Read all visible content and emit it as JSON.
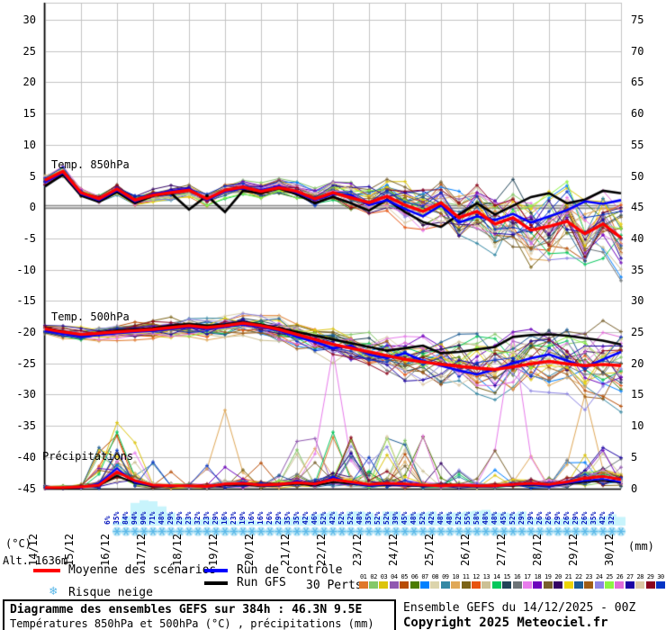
{
  "meta": {
    "altitude_label": "Alt. 1636m",
    "run_info": "Ensemble GEFS du 14/12/2025 - 00Z",
    "copyright": "Copyright 2025 Meteociel.fr",
    "title": "Diagramme des ensembles GEFS sur 384h : 46.3N 9.5E",
    "subtitle": "Températures 850hPa et 500hPa (°C) , précipitations (mm)"
  },
  "legend": {
    "mean": "Moyenne des scénarios",
    "control": "Run de contrôle",
    "gfs": "Run GFS",
    "perts": "30 Perts.",
    "snow": "Risque neige",
    "snowflake_icon": "❄"
  },
  "sections": {
    "t850": "Temp. 850hPa",
    "t500": "Temp. 500hPa",
    "precip": "Précipitations"
  },
  "axes": {
    "left_unit": "(°C)",
    "right_unit": "(mm)",
    "left_ticks": [
      30,
      25,
      20,
      15,
      10,
      5,
      0,
      -5,
      -10,
      -15,
      -20,
      -25,
      -30,
      -35,
      -40,
      -45
    ],
    "right_ticks": [
      75,
      70,
      65,
      60,
      55,
      50,
      45,
      40,
      35,
      30,
      25,
      20,
      15,
      10,
      5,
      0
    ],
    "dates": [
      "14/12",
      "15/12",
      "16/12",
      "17/12",
      "18/12",
      "19/12",
      "20/12",
      "21/12",
      "22/12",
      "23/12",
      "24/12",
      "25/12",
      "26/12",
      "27/12",
      "28/12",
      "29/12",
      "30/12"
    ]
  },
  "members": {
    "numbers": [
      "01",
      "02",
      "03",
      "04",
      "05",
      "06",
      "07",
      "08",
      "09",
      "10",
      "11",
      "12",
      "13",
      "14",
      "15",
      "16",
      "17",
      "18",
      "19",
      "20",
      "21",
      "22",
      "23",
      "24",
      "25",
      "26",
      "27",
      "28",
      "29",
      "30"
    ],
    "colors": [
      "#e07828",
      "#84c868",
      "#dcc40c",
      "#9058b0",
      "#b84c04",
      "#4c7c00",
      "#0080ff",
      "#dcd4ac",
      "#3488a4",
      "#e0a858",
      "#7c6418",
      "#e85410",
      "#ccc094",
      "#04c85c",
      "#204458",
      "#6c7478",
      "#e87cec",
      "#6c04bc",
      "#78602c",
      "#340464",
      "#ecd404",
      "#1c5c94",
      "#a05c14",
      "#8c84e4",
      "#8cf444",
      "#e06cd8",
      "#1c04a4",
      "#dcc8a4",
      "#8c041c",
      "#0434c4"
    ]
  },
  "colors": {
    "mean": "#ff0000",
    "control": "#0000ff",
    "gfs": "#000000",
    "grid": "#c4c4c4",
    "zero_line": "#8a8a8a",
    "axis": "#000000",
    "percent_text": "#0011bb",
    "snow_band": "#c8f4fc",
    "snowflake": "#5bb8e8",
    "snowflake_bg": "#bfe9f7"
  },
  "chart_data": {
    "type": "line",
    "title": "Diagramme des ensembles GEFS sur 384h : 46.3N 9.5E",
    "x_start": "14/12 00Z",
    "x_step_hours": 12,
    "x_days_total": 16,
    "ylim_temp_C": [
      -45,
      30
    ],
    "ylim_precip_mm": [
      0,
      75
    ],
    "grid": true,
    "series": {
      "mean_t850": [
        4.3,
        5.7,
        2.3,
        1.3,
        2.9,
        1.1,
        1.9,
        2.3,
        2.7,
        1.3,
        2.7,
        3.2,
        2.5,
        3.1,
        2.5,
        1.3,
        2.3,
        1.5,
        0.7,
        1.7,
        0.3,
        -0.7,
        0.7,
        -1.7,
        -0.7,
        -2.7,
        -1.7,
        -3.7,
        -3.1,
        -2.3,
        -4.3,
        -2.7,
        -4.9
      ],
      "control_t850": [
        4.0,
        5.5,
        2.1,
        1.1,
        2.7,
        0.9,
        2.1,
        2.5,
        2.9,
        1.1,
        2.5,
        3.0,
        2.7,
        3.3,
        2.3,
        1.1,
        2.1,
        1.9,
        0.3,
        1.1,
        -0.3,
        -1.5,
        0.3,
        -2.5,
        -1.5,
        -2.1,
        -1.1,
        -2.5,
        -1.5,
        -0.5,
        0.9,
        0.5,
        1.1
      ],
      "gfs_t850": [
        3.3,
        5.2,
        1.8,
        0.8,
        2.4,
        0.6,
        1.8,
        2.2,
        -0.4,
        1.8,
        -0.8,
        2.6,
        2.2,
        3.0,
        2.0,
        0.6,
        1.6,
        0.6,
        -0.6,
        1.2,
        -0.8,
        -2.4,
        -3.2,
        -1.2,
        0.6,
        -1.2,
        0.2,
        1.6,
        2.2,
        0.6,
        1.2,
        2.6,
        2.2
      ],
      "mean_t500": [
        -19.5,
        -20.0,
        -20.4,
        -20.2,
        -20.0,
        -19.8,
        -19.6,
        -19.3,
        -19.0,
        -19.3,
        -19.0,
        -18.6,
        -19.0,
        -19.6,
        -20.4,
        -21.2,
        -22.0,
        -22.6,
        -23.2,
        -23.8,
        -24.4,
        -24.8,
        -25.2,
        -25.5,
        -25.8,
        -26.0,
        -25.6,
        -25.1,
        -24.7,
        -25.1,
        -25.4,
        -25.2,
        -25.4
      ],
      "control_t500": [
        -19.8,
        -20.3,
        -20.7,
        -20.5,
        -20.2,
        -20.0,
        -19.8,
        -19.5,
        -19.2,
        -19.5,
        -19.2,
        -18.8,
        -19.2,
        -19.8,
        -20.8,
        -21.6,
        -22.6,
        -22.2,
        -23.6,
        -24.2,
        -23.4,
        -24.6,
        -25.4,
        -26.2,
        -26.8,
        -26.0,
        -25.0,
        -24.2,
        -23.6,
        -24.6,
        -25.6,
        -24.4,
        -23.2
      ],
      "gfs_t500": [
        -19.4,
        -19.9,
        -20.5,
        -20.1,
        -19.8,
        -19.6,
        -19.4,
        -19.0,
        -18.7,
        -19.0,
        -18.8,
        -18.4,
        -18.8,
        -19.4,
        -20.0,
        -20.6,
        -21.2,
        -21.8,
        -22.4,
        -23.0,
        -22.6,
        -22.2,
        -23.4,
        -23.2,
        -22.8,
        -22.4,
        -20.8,
        -20.5,
        -20.4,
        -20.6,
        -21.0,
        -21.4,
        -22.0
      ],
      "mean_precip": [
        0.1,
        0.1,
        0.2,
        0.5,
        2.6,
        1.2,
        0.5,
        0.4,
        0.4,
        0.3,
        0.7,
        0.8,
        0.5,
        0.6,
        0.9,
        0.7,
        1.4,
        1.0,
        0.6,
        0.8,
        0.7,
        0.5,
        0.4,
        0.5,
        0.4,
        0.4,
        0.6,
        0.8,
        0.6,
        1.0,
        1.6,
        1.9,
        1.4
      ],
      "control_precip": [
        0.0,
        0.1,
        0.1,
        0.8,
        3.2,
        0.9,
        0.4,
        0.3,
        0.5,
        0.2,
        0.6,
        1.0,
        0.4,
        0.5,
        1.2,
        0.5,
        1.8,
        0.8,
        0.4,
        0.6,
        0.5,
        0.4,
        0.3,
        0.4,
        0.3,
        0.3,
        0.5,
        0.6,
        0.4,
        0.8,
        1.2,
        1.5,
        1.0
      ],
      "gfs_precip": [
        0.0,
        0.0,
        0.2,
        0.4,
        2.0,
        0.8,
        0.3,
        0.3,
        0.3,
        0.2,
        0.5,
        0.6,
        0.3,
        0.4,
        0.7,
        0.4,
        1.0,
        0.7,
        0.4,
        0.5,
        0.4,
        0.3,
        0.3,
        0.3,
        0.3,
        0.3,
        0.4,
        0.5,
        0.4,
        0.7,
        1.0,
        1.2,
        0.9
      ]
    },
    "member_spread": {
      "t850_up": [
        1,
        1,
        1,
        1,
        1.2,
        1.2,
        1.2,
        1.2,
        1.2,
        1.2,
        1.5,
        1.5,
        1.5,
        1.5,
        1.5,
        1.8,
        2,
        2.5,
        3,
        3.5,
        4,
        4.5,
        5,
        5.5,
        6,
        6.5,
        7,
        7.5,
        7.5,
        8,
        8,
        8.5,
        9
      ],
      "t850_down": [
        1,
        1,
        1,
        1,
        1.2,
        1.2,
        1.2,
        1.5,
        1.5,
        1.5,
        1.5,
        1.5,
        1.5,
        1.5,
        1.5,
        2,
        2.2,
        2.8,
        3.2,
        3.8,
        4.2,
        4.8,
        5.2,
        5.6,
        6,
        6.5,
        7,
        7.5,
        7.5,
        7.5,
        7.5,
        7.5,
        8
      ],
      "t500_up": [
        1.2,
        1.2,
        1.2,
        1.5,
        1.5,
        1.5,
        1.5,
        1.8,
        1.8,
        1.8,
        2,
        2,
        2.2,
        2.5,
        2.5,
        3,
        3,
        3.5,
        3.5,
        4,
        4.5,
        5,
        5,
        5.5,
        5.5,
        6,
        6,
        6.5,
        6.5,
        6.5,
        7,
        7,
        7.5
      ],
      "t500_down": [
        1.2,
        1.2,
        1.5,
        1.5,
        1.5,
        1.5,
        1.8,
        1.8,
        2,
        2,
        2,
        2.2,
        2.5,
        2.5,
        3,
        3,
        3.5,
        4,
        4.5,
        5,
        5.5,
        6,
        6.5,
        7,
        7,
        7.5,
        7.5,
        8,
        8,
        8,
        8,
        8.5,
        8.5
      ]
    },
    "precip_spikes": [
      [
        16,
        16,
        22.0
      ],
      [
        16,
        26,
        24.6
      ],
      [
        9,
        10,
        12.5
      ],
      [
        9,
        30,
        15.0
      ],
      [
        2,
        4,
        10.5
      ],
      [
        13,
        4,
        9.0
      ],
      [
        4,
        4,
        8.5
      ],
      [
        21,
        19,
        8.0
      ],
      [
        5,
        21,
        8.2
      ],
      [
        18,
        25,
        6.0
      ],
      [
        3,
        14,
        7.5
      ],
      [
        26,
        31,
        6.5
      ]
    ],
    "snow_risk_percent": [
      6,
      35,
      84,
      94,
      90,
      71,
      48,
      29,
      29,
      23,
      32,
      23,
      29,
      16,
      23,
      19,
      16,
      16,
      26,
      29,
      35,
      35,
      42,
      46,
      52,
      42,
      52,
      52,
      48,
      35,
      52,
      52,
      39,
      45,
      48,
      52,
      42,
      48,
      48,
      52,
      55,
      58,
      48,
      48,
      45,
      52,
      29,
      29,
      26,
      26,
      29,
      26,
      29,
      26,
      35,
      42,
      32
    ],
    "snow_risk_start_day": 2,
    "snow_risk_step_hours": 6
  }
}
